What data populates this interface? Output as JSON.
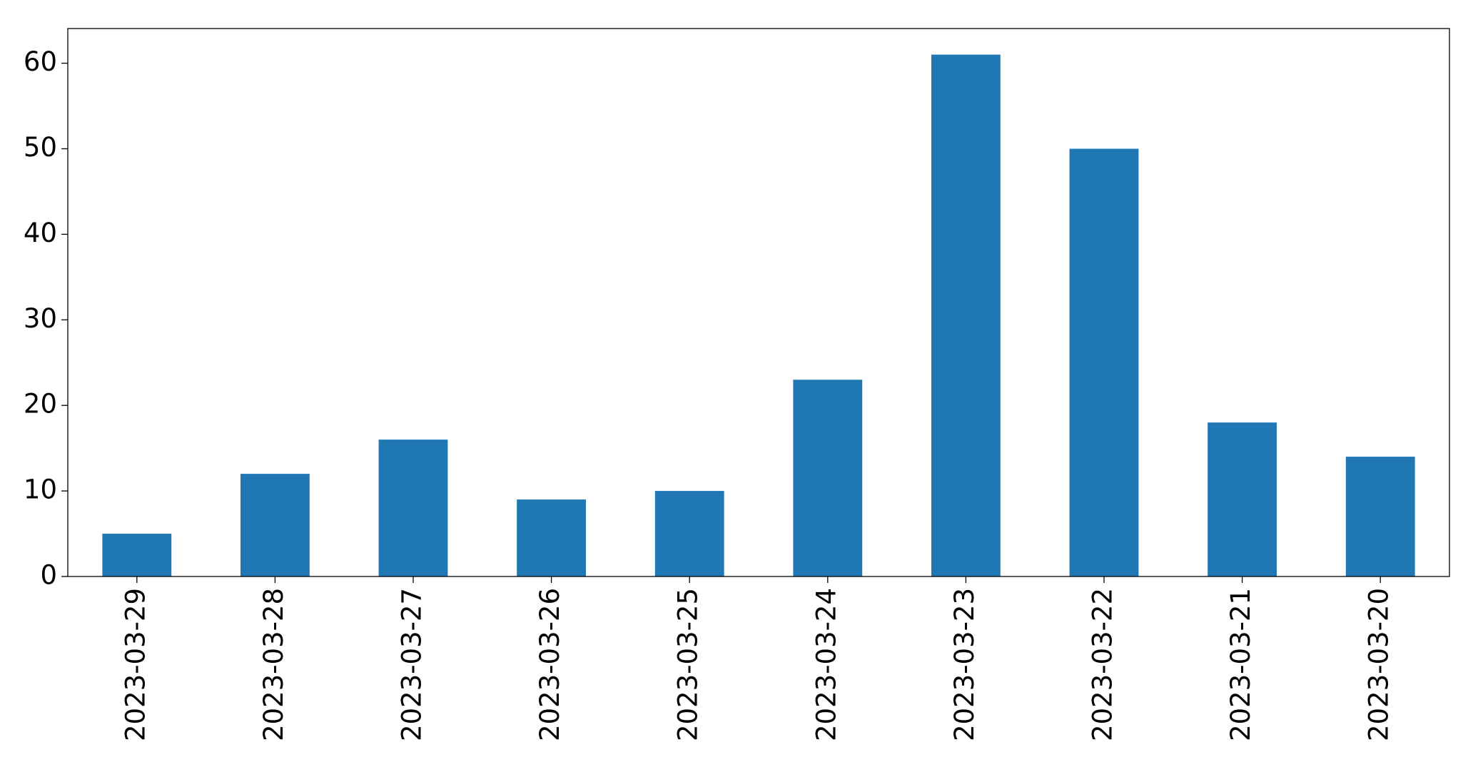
{
  "chart_data": {
    "type": "bar",
    "categories": [
      "2023-03-29",
      "2023-03-28",
      "2023-03-27",
      "2023-03-26",
      "2023-03-25",
      "2023-03-24",
      "2023-03-23",
      "2023-03-22",
      "2023-03-21",
      "2023-03-20"
    ],
    "values": [
      5,
      12,
      16,
      9,
      10,
      23,
      61,
      50,
      18,
      14
    ],
    "color": "#1f77b4",
    "ylim": [
      0,
      64.05
    ],
    "yticks": [
      0,
      10,
      20,
      30,
      40,
      50,
      60
    ],
    "grid": false
  }
}
